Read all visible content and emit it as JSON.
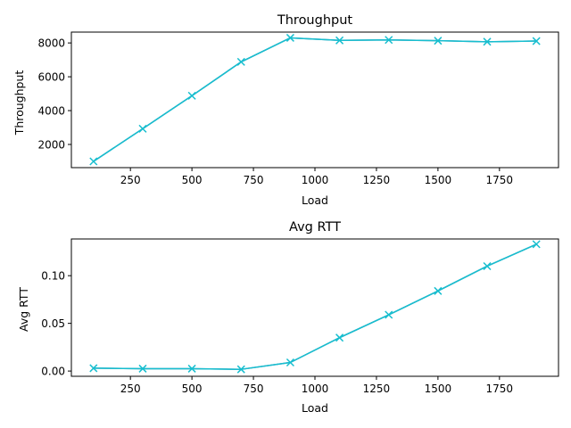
{
  "colors": {
    "series": "#17becf",
    "series_under": "#3a8fb0",
    "axis": "#000000",
    "background": "#ffffff"
  },
  "chart_data": [
    {
      "type": "line",
      "title": "Throughput",
      "xlabel": "Load",
      "ylabel": "Throughput",
      "marker": "x",
      "grid": false,
      "xlim": [
        10,
        1990
      ],
      "ylim": [
        630,
        8640
      ],
      "xticks": [
        250,
        500,
        750,
        1000,
        1250,
        1500,
        1750
      ],
      "xtick_labels": [
        "250",
        "500",
        "750",
        "1000",
        "1250",
        "1500",
        "1750"
      ],
      "yticks": [
        2000,
        4000,
        6000,
        8000
      ],
      "ytick_labels": [
        "2000",
        "4000",
        "6000",
        "8000"
      ],
      "series": [
        {
          "x": [
            100,
            300,
            500,
            700,
            900,
            1100,
            1300,
            1500,
            1700,
            1900
          ],
          "values": [
            1000,
            2930,
            4880,
            6880,
            8300,
            8150,
            8180,
            8130,
            8070,
            8110
          ]
        }
      ]
    },
    {
      "type": "line",
      "title": "Avg RTT",
      "xlabel": "Load",
      "ylabel": "Avg RTT",
      "marker": "x",
      "grid": false,
      "xlim": [
        10,
        1990
      ],
      "ylim": [
        -0.0055,
        0.1385
      ],
      "xticks": [
        250,
        500,
        750,
        1000,
        1250,
        1500,
        1750
      ],
      "xtick_labels": [
        "250",
        "500",
        "750",
        "1000",
        "1250",
        "1500",
        "1750"
      ],
      "yticks": [
        0.0,
        0.05,
        0.1
      ],
      "ytick_labels": [
        "0.00",
        "0.05",
        "0.10"
      ],
      "series": [
        {
          "x": [
            100,
            300,
            500,
            700,
            900,
            1100,
            1300,
            1500,
            1700,
            1900
          ],
          "values": [
            0.003,
            0.0025,
            0.0025,
            0.0018,
            0.009,
            0.035,
            0.059,
            0.084,
            0.11,
            0.133
          ]
        }
      ]
    }
  ]
}
